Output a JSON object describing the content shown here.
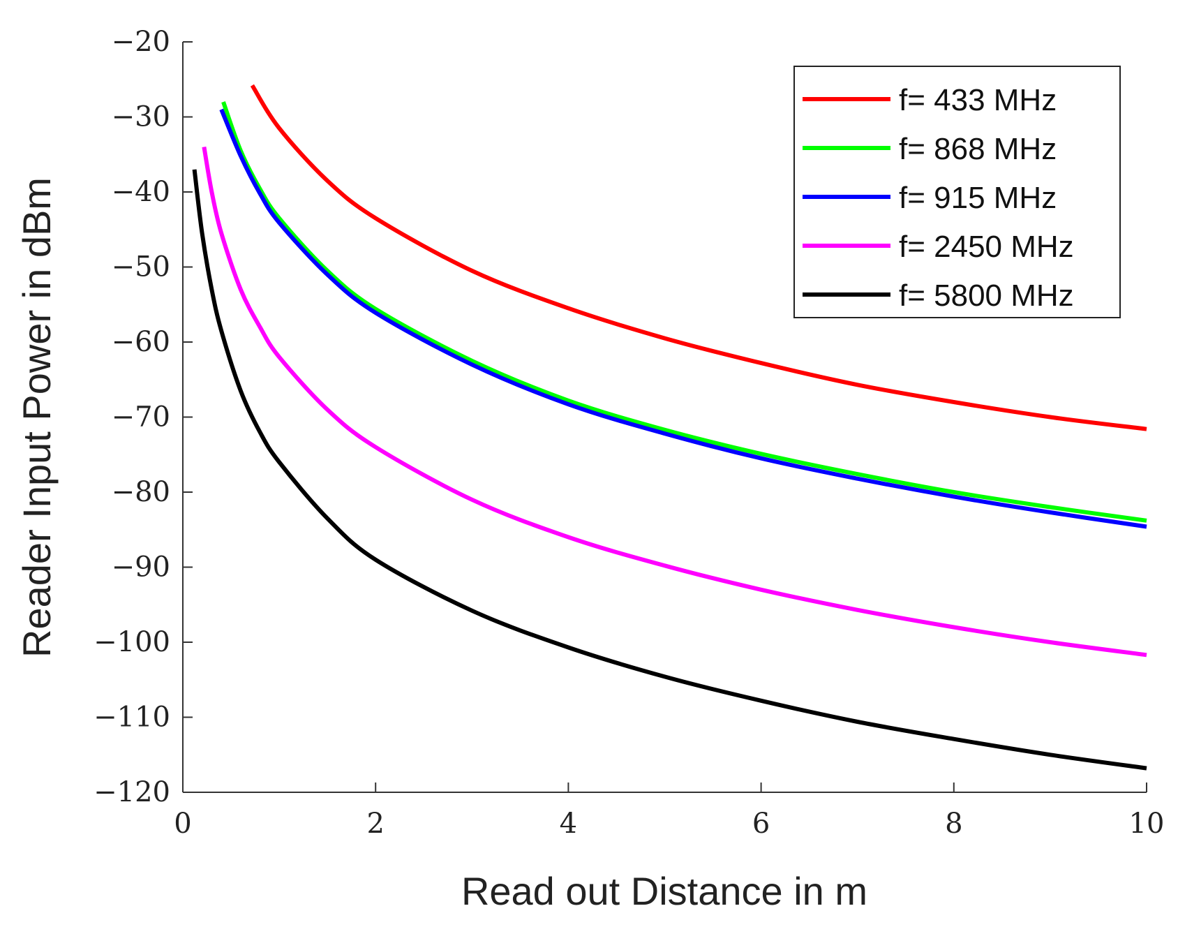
{
  "chart_data": {
    "type": "line",
    "title": "",
    "xlabel": "Read out Distance in m",
    "ylabel": "Reader Input Power in dBm",
    "xlim": [
      0,
      10
    ],
    "ylim": [
      -120,
      -20
    ],
    "xticks": [
      0,
      2,
      4,
      6,
      8,
      10
    ],
    "xtick_labels": [
      "0",
      "2",
      "4",
      "6",
      "8",
      "10"
    ],
    "yticks": [
      -20,
      -30,
      -40,
      -50,
      -60,
      -70,
      -80,
      -90,
      -100,
      -110,
      -120
    ],
    "ytick_labels": [
      "−20",
      "−30",
      "−40",
      "−50",
      "−60",
      "−70",
      "−80",
      "−90",
      "−100",
      "−110",
      "−120"
    ],
    "grid": false,
    "legend_position": "top-right",
    "series": [
      {
        "name": "f= 433 MHz",
        "color": "#ff0000",
        "x": [
          0.72,
          1,
          1.5,
          2,
          3,
          4,
          5,
          6,
          7,
          8,
          9,
          10
        ],
        "y": [
          -25.8,
          -31.5,
          -38.5,
          -43.5,
          -50.5,
          -55.5,
          -59.5,
          -62.8,
          -65.7,
          -68.0,
          -70.0,
          -71.6
        ]
      },
      {
        "name": "f= 868 MHz",
        "color": "#00ff00",
        "x": [
          0.42,
          0.6,
          0.8,
          1,
          1.5,
          2,
          3,
          4,
          5,
          6,
          7,
          8,
          9,
          10
        ],
        "y": [
          -28.0,
          -34.5,
          -39.6,
          -43.5,
          -50.5,
          -55.6,
          -62.5,
          -67.8,
          -71.7,
          -74.9,
          -77.6,
          -80.0,
          -82.0,
          -83.8
        ]
      },
      {
        "name": "f= 915 MHz",
        "color": "#0000ff",
        "x": [
          0.4,
          0.6,
          0.8,
          1,
          1.5,
          2,
          3,
          4,
          5,
          6,
          7,
          8,
          9,
          10
        ],
        "y": [
          -29.0,
          -35.2,
          -40.2,
          -44.1,
          -51.0,
          -56.1,
          -63.0,
          -68.3,
          -72.2,
          -75.5,
          -78.2,
          -80.6,
          -82.7,
          -84.6
        ]
      },
      {
        "name": "f= 2450 MHz",
        "color": "#ff00ff",
        "x": [
          0.22,
          0.3,
          0.4,
          0.6,
          0.8,
          1,
          1.5,
          2,
          3,
          4,
          5,
          6,
          7,
          8,
          9,
          10
        ],
        "y": [
          -34.0,
          -40.0,
          -45.5,
          -53.0,
          -58.0,
          -62.0,
          -69.0,
          -74.0,
          -81.0,
          -86.0,
          -89.8,
          -93.0,
          -95.7,
          -98.0,
          -100.0,
          -101.7
        ]
      },
      {
        "name": "f= 5800 MHz",
        "color": "#000000",
        "x": [
          0.12,
          0.2,
          0.3,
          0.4,
          0.6,
          0.8,
          1,
          1.5,
          2,
          3,
          4,
          5,
          6,
          7,
          8,
          9,
          10
        ],
        "y": [
          -37.0,
          -45.5,
          -53.0,
          -58.5,
          -66.5,
          -72.0,
          -76.0,
          -83.5,
          -89.0,
          -95.8,
          -100.7,
          -104.6,
          -107.8,
          -110.6,
          -112.9,
          -115.0,
          -116.8
        ]
      }
    ]
  }
}
